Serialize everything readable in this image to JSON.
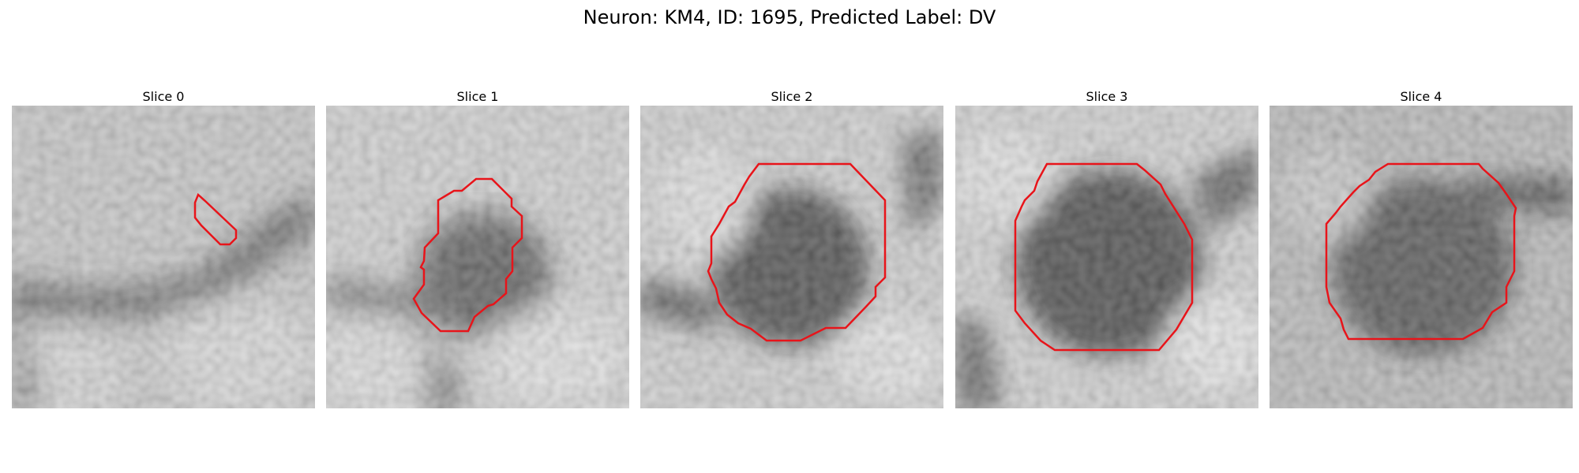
{
  "figure": {
    "title": "Neuron: KM4, ID: 1695, Predicted Label: DV"
  },
  "colors": {
    "contour": "#e8141a",
    "background": "#ffffff"
  },
  "panels": [
    {
      "title": "Slice 0"
    },
    {
      "title": "Slice 1"
    },
    {
      "title": "Slice 2"
    },
    {
      "title": "Slice 3"
    },
    {
      "title": "Slice 4"
    }
  ]
}
